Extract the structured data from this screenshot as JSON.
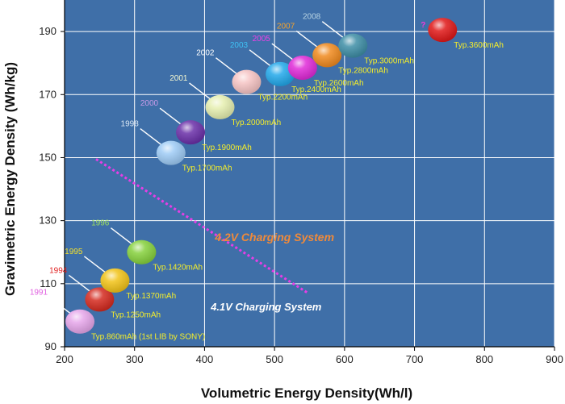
{
  "chart_data": {
    "type": "scatter",
    "title": "",
    "xlabel": "Volumetric Energy Density(Wh/l)",
    "ylabel": "Gravimetric Energy Density (Wh/kg)",
    "xlim": [
      200,
      900
    ],
    "ylim": [
      90,
      200
    ],
    "x_ticks": [
      "200",
      "300",
      "400",
      "500",
      "600",
      "700",
      "800",
      "900"
    ],
    "y_ticks": [
      "90",
      "110",
      "130",
      "150",
      "170",
      "190"
    ],
    "grid": true,
    "colors": {
      "plot_background": "#3f6fa8",
      "grid": "#ffffff",
      "capacity_label": "#f5ee2a",
      "divider": "#e63ee6"
    },
    "points": [
      {
        "year": "1991",
        "capacity": "Typ.860mAh (1st LIB by SONY)",
        "x": 222,
        "y": 98,
        "color": "#e6a6ea",
        "year_color": "#e060e0"
      },
      {
        "year": "1994",
        "capacity": "Typ.1250mAh",
        "x": 250,
        "y": 105,
        "color": "#d42a1f",
        "year_color": "#e02020"
      },
      {
        "year": "1995",
        "capacity": "Typ.1370mAh",
        "x": 272,
        "y": 111,
        "color": "#f2c318",
        "year_color": "#f5e12a"
      },
      {
        "year": "1996",
        "capacity": "Typ.1420mAh",
        "x": 310,
        "y": 120,
        "color": "#86d13d",
        "year_color": "#9fe060"
      },
      {
        "year": "1998",
        "capacity": "Typ.1700mAh",
        "x": 352,
        "y": 151.5,
        "color": "#9ecbf5",
        "year_color": "#dce8f5"
      },
      {
        "year": "2000",
        "capacity": "Typ.1900mAh",
        "x": 380,
        "y": 158,
        "color": "#6a2fa8",
        "year_color": "#c89ae8"
      },
      {
        "year": "2001",
        "capacity": "Typ.2000mAh",
        "x": 422,
        "y": 166,
        "color": "#e6efb0",
        "year_color": "#f3f7d0"
      },
      {
        "year": "2002",
        "capacity": "Typ.2200mAh",
        "x": 460,
        "y": 174,
        "color": "#f6c4c4",
        "year_color": "#ffffff"
      },
      {
        "year": "2003",
        "capacity": "Typ.2400mAh",
        "x": 508,
        "y": 176.5,
        "color": "#22a8ea",
        "year_color": "#3fc2f5"
      },
      {
        "year": "2005",
        "capacity": "Typ.2600mAh",
        "x": 540,
        "y": 178.5,
        "color": "#e02ad8",
        "year_color": "#f040e8"
      },
      {
        "year": "2007",
        "capacity": "Typ.2800mAh",
        "x": 575,
        "y": 182.5,
        "color": "#f08a1e",
        "year_color": "#f5a22a"
      },
      {
        "year": "2008",
        "capacity": "Typ.3000mAh",
        "x": 612,
        "y": 185.5,
        "color": "#3e8ea6",
        "year_color": "#b8d4e4"
      },
      {
        "year": "?",
        "capacity": "Typ.3600mAh",
        "x": 740,
        "y": 190.5,
        "color": "#e01818",
        "year_color": "#f03ad8"
      }
    ],
    "annotations": {
      "system_42": "4.2V Charging System",
      "system_41": "4.1V Charging System"
    }
  }
}
